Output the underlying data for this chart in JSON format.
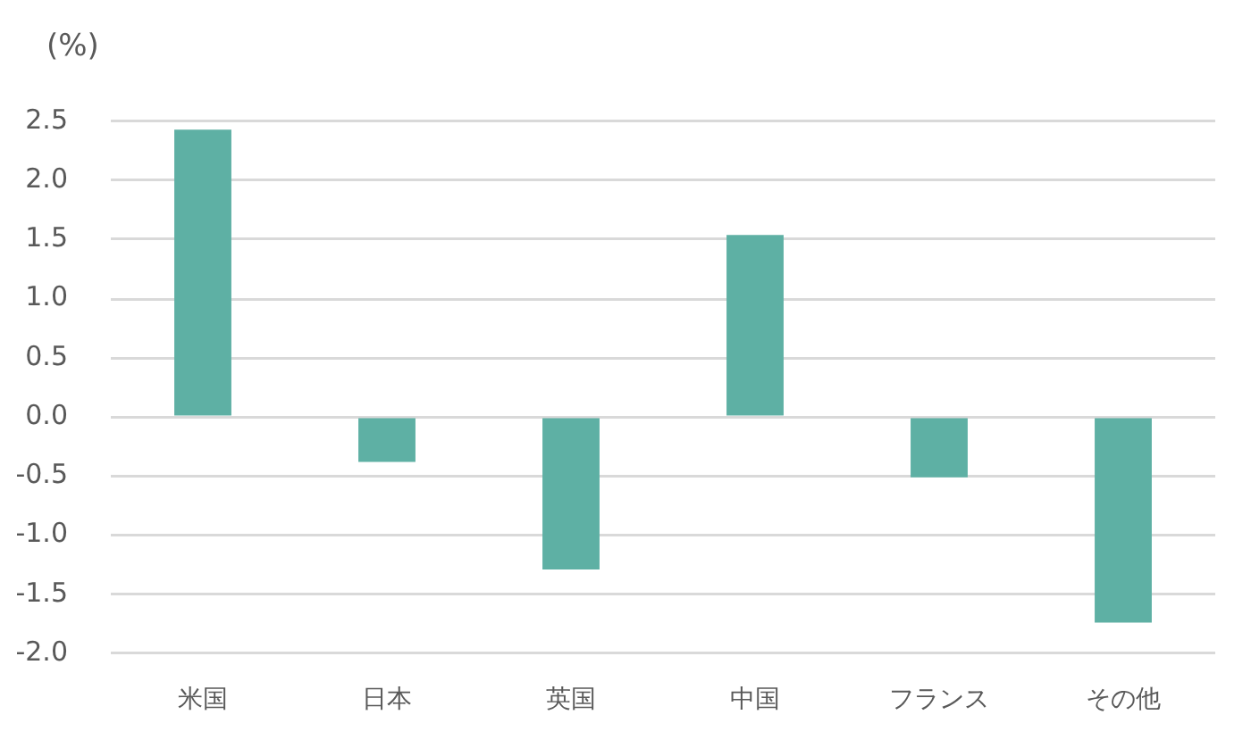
{
  "chart_data": {
    "type": "bar",
    "ylabel": "(%)",
    "categories": [
      "米国",
      "日本",
      "英国",
      "中国",
      "フランス",
      "その他"
    ],
    "values": [
      2.43,
      -0.38,
      -1.29,
      1.54,
      -0.51,
      -1.74
    ],
    "color": "#5eb0a4",
    "ylim": [
      -2.0,
      2.5
    ],
    "yticks": [
      {
        "value": -2.0,
        "label": "-2.0"
      },
      -1.5,
      {
        "value": -1.0,
        "label": "-1.0"
      },
      -0.5,
      {
        "value": 0,
        "label": "0.0"
      },
      0.5,
      {
        "value": 1.0,
        "label": "1.0"
      },
      1.5,
      {
        "value": 2.0,
        "label": "2.0"
      },
      2.5
    ],
    "grid": "y"
  }
}
